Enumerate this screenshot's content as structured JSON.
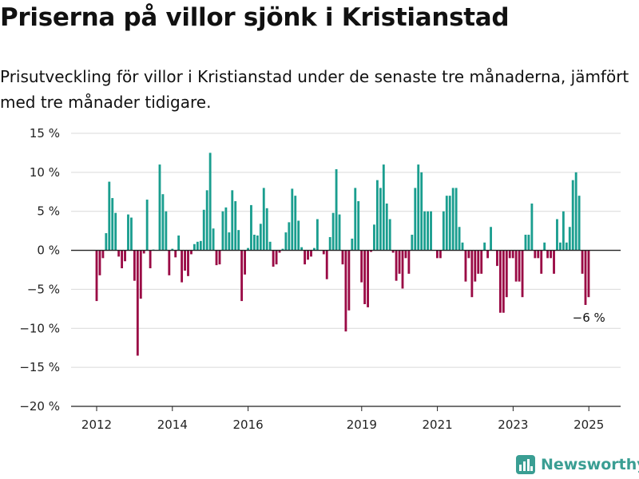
{
  "header": {
    "title": "Priserna på villor sjönk i Kristianstad",
    "subtitle": "Prisutveckling för villor i Kristianstad under de senaste tre månaderna, jämfört med tre månader tidigare."
  },
  "brand": {
    "name": "Newsworthy",
    "icon": "newsworthy-logo-icon",
    "color": "#3a9e93"
  },
  "chart_data": {
    "type": "bar",
    "title": "Priserna på villor sjönk i Kristianstad",
    "ylim": [
      -20,
      15
    ],
    "y_ticks": [
      15,
      10,
      5,
      0,
      -5,
      -10,
      -15,
      -20
    ],
    "y_tick_labels": [
      "15 %",
      "10 %",
      "5 %",
      "0 %",
      "−5 %",
      "−10 %",
      "−15 %",
      "−20 %"
    ],
    "x_tick_labels": [
      "2012",
      "2014",
      "2016",
      "2019",
      "2021",
      "2023",
      "2025"
    ],
    "x_tick_values": [
      2012,
      2014,
      2016,
      2019,
      2021,
      2023,
      2025
    ],
    "x_start": 2012.0,
    "x_step": 0.0833,
    "grid": true,
    "colors": {
      "positive": "#1a9e8f",
      "negative": "#9a0a45"
    },
    "annotation": {
      "text": "−6 %",
      "x": 2025.0,
      "y": -6
    },
    "values": [
      -6.5,
      -3.2,
      -1.0,
      2.2,
      8.8,
      6.7,
      4.8,
      -0.8,
      -2.3,
      -1.4,
      4.6,
      4.2,
      -3.9,
      -13.5,
      -6.2,
      -0.4,
      6.5,
      -2.3,
      0.1,
      0.0,
      11.0,
      7.2,
      5.0,
      -3.2,
      0.2,
      -0.9,
      1.9,
      -4.1,
      -2.6,
      -3.3,
      -0.5,
      0.8,
      1.1,
      1.2,
      5.2,
      7.7,
      12.5,
      2.8,
      -1.9,
      -1.8,
      5.0,
      5.5,
      2.3,
      7.7,
      6.3,
      2.6,
      -6.5,
      -3.1,
      0.3,
      5.8,
      2.0,
      1.9,
      3.4,
      8.0,
      5.4,
      1.1,
      -2.1,
      -1.8,
      -0.3,
      0.2,
      2.3,
      3.6,
      7.9,
      7.0,
      3.8,
      0.4,
      -1.8,
      -1.2,
      -0.8,
      0.3,
      4.0,
      0.0,
      -0.5,
      -3.7,
      1.7,
      4.8,
      10.4,
      4.6,
      -1.8,
      -10.4,
      -7.7,
      1.5,
      8.0,
      6.3,
      -4.1,
      -6.9,
      -7.3,
      -0.2,
      3.3,
      9.0,
      8.0,
      11.0,
      6.0,
      4.0,
      -0.3,
      -3.9,
      -3.0,
      -4.9,
      -1.0,
      -3.0,
      2.0,
      8.0,
      11.0,
      10.0,
      5.0,
      5.0,
      5.0,
      0.0,
      -1.0,
      -1.0,
      5.0,
      7.0,
      7.0,
      8.0,
      8.0,
      3.0,
      1.0,
      -4.0,
      -1.0,
      -6.0,
      -4.0,
      -3.0,
      -3.0,
      1.0,
      -1.0,
      3.0,
      0.0,
      -2.0,
      -8.0,
      -8.0,
      -6.0,
      -1.0,
      -1.0,
      -4.0,
      -4.0,
      -6.0,
      2.0,
      2.0,
      6.0,
      -1.0,
      -1.0,
      -3.0,
      1.0,
      -1.0,
      -1.0,
      -3.0,
      4.0,
      1.0,
      5.0,
      1.0,
      3.0,
      9.0,
      10.0,
      7.0,
      -3.0,
      -7.0,
      -6.0
    ]
  }
}
